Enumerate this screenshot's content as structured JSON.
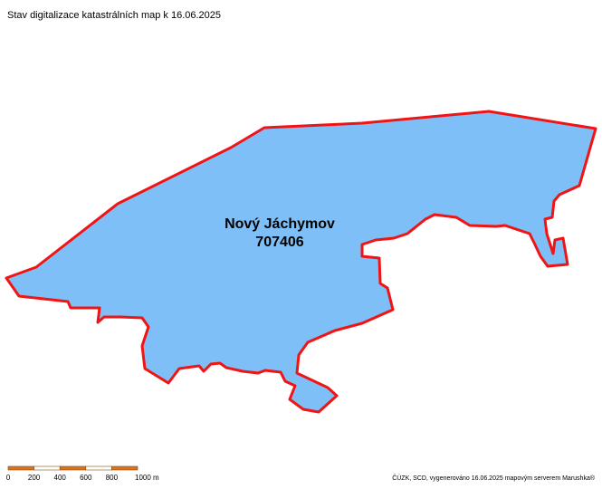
{
  "title": "Stav digitalizace katastrálních map k 16.06.2025",
  "parcel": {
    "name": "Nový Jáchymov",
    "code": "707406"
  },
  "scale_bar": {
    "labels": [
      "0",
      "200",
      "400",
      "600",
      "800",
      "1000 m"
    ]
  },
  "credit": "ČÚZK, SCD, vygenerováno 16.06.2025 mapovým serverem Marushka®"
}
